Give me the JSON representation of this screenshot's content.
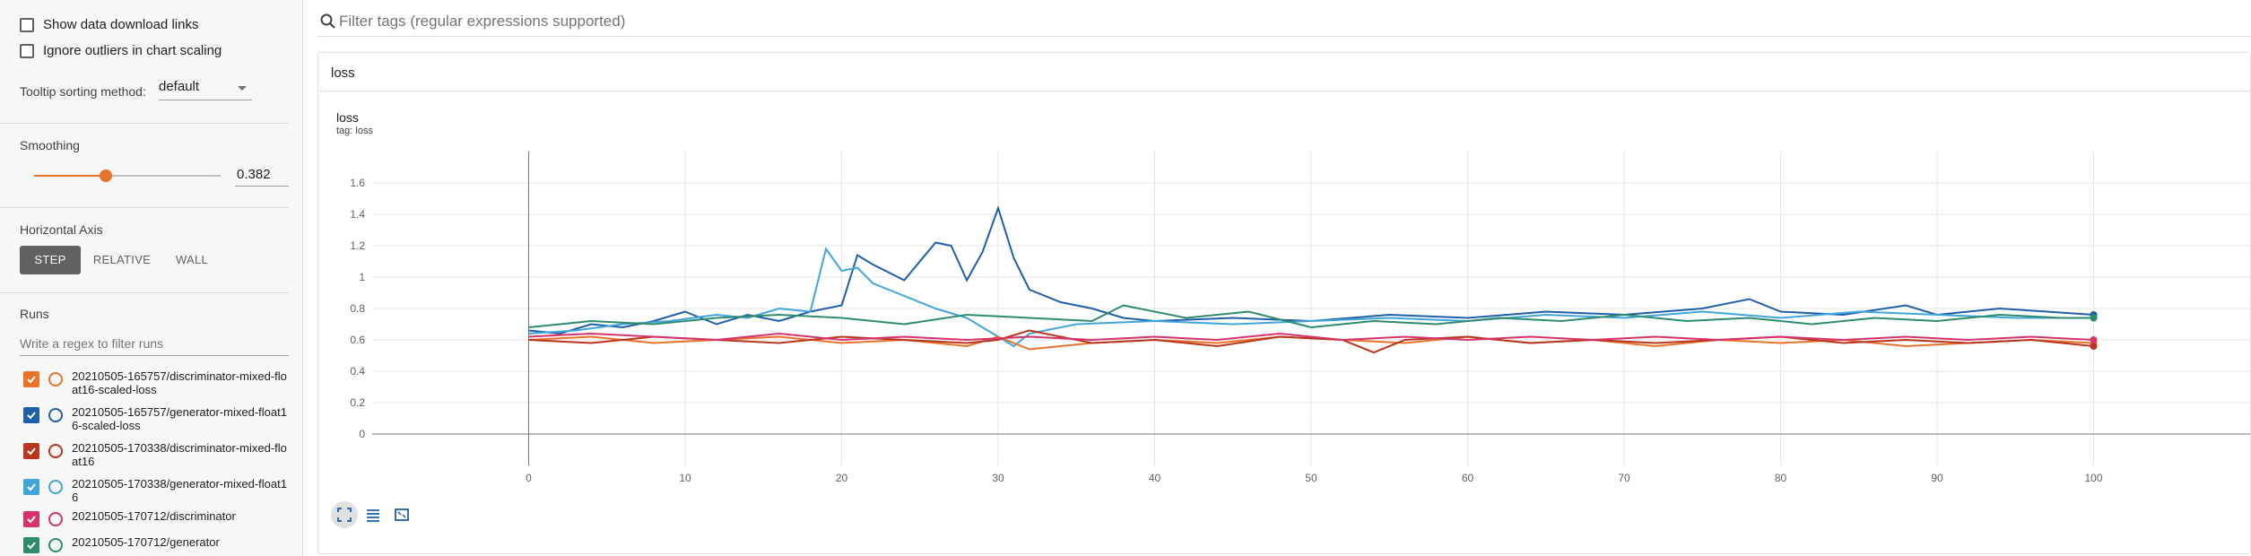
{
  "sidebar": {
    "show_download": {
      "label": "Show data download links",
      "checked": false
    },
    "ignore_outliers": {
      "label": "Ignore outliers in chart scaling",
      "checked": false
    },
    "tooltip_sorting": {
      "label": "Tooltip sorting method:",
      "value": "default"
    },
    "smoothing": {
      "label": "Smoothing",
      "value": "0.382",
      "fraction": 0.382
    },
    "horizontal_axis": {
      "label": "Horizontal Axis",
      "options": [
        "STEP",
        "RELATIVE",
        "WALL"
      ],
      "selected": "STEP"
    },
    "runs": {
      "label": "Runs",
      "filter_placeholder": "Write a regex to filter runs",
      "items": [
        {
          "line1": "20210505-165757/discriminator-mixed-flo",
          "line2": "at16-scaled-loss",
          "color": "#e8732b",
          "checked": true
        },
        {
          "line1": "20210505-165757/generator-mixed-float1",
          "line2": "6-scaled-loss",
          "color": "#1f5ea8",
          "checked": true
        },
        {
          "line1": "20210505-170338/discriminator-mixed-flo",
          "line2": "at16",
          "color": "#b8351e",
          "checked": true
        },
        {
          "line1": "20210505-170338/generator-mixed-float1",
          "line2": "6",
          "color": "#42a5d8",
          "checked": true
        },
        {
          "line1": "20210505-170712/discriminator",
          "line2": "",
          "color": "#d6336c",
          "checked": true
        },
        {
          "line1": "20210505-170712/generator",
          "line2": "",
          "color": "#2e8b6e",
          "checked": true
        }
      ]
    }
  },
  "filter": {
    "placeholder": "Filter tags (regular expressions supported)",
    "icon": "search-icon"
  },
  "card": {
    "title": "loss",
    "chart_title": "loss",
    "tag": "tag: loss"
  },
  "toolbar": {
    "icons": [
      "fit-domain-icon",
      "toggle-log-icon",
      "expand-icon"
    ]
  },
  "chart_data": {
    "type": "line",
    "title": "loss",
    "xlim": [
      -10,
      110
    ],
    "ylim": [
      -0.2,
      1.8
    ],
    "x_ticks": [
      0,
      10,
      20,
      30,
      40,
      50,
      60,
      70,
      80,
      90,
      100
    ],
    "y_ticks": [
      0,
      0.2,
      0.4,
      0.6,
      0.8,
      1,
      1.2,
      1.4,
      1.6
    ],
    "grid": true,
    "series": [
      {
        "color": "#1f5ea8",
        "points": [
          [
            0,
            0.66
          ],
          [
            2,
            0.64
          ],
          [
            4,
            0.7
          ],
          [
            6,
            0.68
          ],
          [
            8,
            0.72
          ],
          [
            10,
            0.78
          ],
          [
            12,
            0.7
          ],
          [
            14,
            0.76
          ],
          [
            16,
            0.72
          ],
          [
            18,
            0.78
          ],
          [
            19,
            0.8
          ],
          [
            20,
            0.82
          ],
          [
            21,
            1.14
          ],
          [
            22,
            1.08
          ],
          [
            24,
            0.98
          ],
          [
            26,
            1.22
          ],
          [
            27,
            1.2
          ],
          [
            28,
            0.98
          ],
          [
            29,
            1.16
          ],
          [
            30,
            1.44
          ],
          [
            31,
            1.12
          ],
          [
            32,
            0.92
          ],
          [
            34,
            0.84
          ],
          [
            36,
            0.8
          ],
          [
            38,
            0.74
          ],
          [
            40,
            0.72
          ],
          [
            45,
            0.74
          ],
          [
            50,
            0.72
          ],
          [
            55,
            0.76
          ],
          [
            60,
            0.74
          ],
          [
            65,
            0.78
          ],
          [
            70,
            0.76
          ],
          [
            75,
            0.8
          ],
          [
            78,
            0.86
          ],
          [
            80,
            0.78
          ],
          [
            84,
            0.76
          ],
          [
            88,
            0.82
          ],
          [
            90,
            0.76
          ],
          [
            94,
            0.8
          ],
          [
            97,
            0.78
          ],
          [
            100,
            0.76
          ]
        ]
      },
      {
        "color": "#42a5d8",
        "points": [
          [
            0,
            0.64
          ],
          [
            3,
            0.66
          ],
          [
            6,
            0.7
          ],
          [
            9,
            0.72
          ],
          [
            12,
            0.76
          ],
          [
            14,
            0.74
          ],
          [
            16,
            0.8
          ],
          [
            18,
            0.78
          ],
          [
            19,
            1.18
          ],
          [
            20,
            1.04
          ],
          [
            21,
            1.06
          ],
          [
            22,
            0.96
          ],
          [
            24,
            0.88
          ],
          [
            26,
            0.8
          ],
          [
            28,
            0.74
          ],
          [
            30,
            0.62
          ],
          [
            31,
            0.56
          ],
          [
            32,
            0.64
          ],
          [
            35,
            0.7
          ],
          [
            40,
            0.72
          ],
          [
            45,
            0.7
          ],
          [
            50,
            0.72
          ],
          [
            55,
            0.74
          ],
          [
            60,
            0.72
          ],
          [
            65,
            0.76
          ],
          [
            70,
            0.74
          ],
          [
            75,
            0.78
          ],
          [
            80,
            0.74
          ],
          [
            85,
            0.78
          ],
          [
            90,
            0.76
          ],
          [
            95,
            0.74
          ],
          [
            100,
            0.74
          ]
        ]
      },
      {
        "color": "#2e8b6e",
        "points": [
          [
            0,
            0.68
          ],
          [
            4,
            0.72
          ],
          [
            8,
            0.7
          ],
          [
            12,
            0.74
          ],
          [
            16,
            0.76
          ],
          [
            20,
            0.74
          ],
          [
            24,
            0.7
          ],
          [
            28,
            0.76
          ],
          [
            32,
            0.74
          ],
          [
            36,
            0.72
          ],
          [
            38,
            0.82
          ],
          [
            42,
            0.74
          ],
          [
            46,
            0.78
          ],
          [
            50,
            0.68
          ],
          [
            54,
            0.72
          ],
          [
            58,
            0.7
          ],
          [
            62,
            0.74
          ],
          [
            66,
            0.72
          ],
          [
            70,
            0.76
          ],
          [
            74,
            0.72
          ],
          [
            78,
            0.74
          ],
          [
            82,
            0.7
          ],
          [
            86,
            0.74
          ],
          [
            90,
            0.72
          ],
          [
            94,
            0.76
          ],
          [
            98,
            0.74
          ],
          [
            100,
            0.74
          ]
        ]
      },
      {
        "color": "#e8732b",
        "points": [
          [
            0,
            0.6
          ],
          [
            4,
            0.62
          ],
          [
            8,
            0.58
          ],
          [
            12,
            0.6
          ],
          [
            16,
            0.62
          ],
          [
            20,
            0.58
          ],
          [
            24,
            0.6
          ],
          [
            28,
            0.56
          ],
          [
            30,
            0.62
          ],
          [
            32,
            0.54
          ],
          [
            36,
            0.58
          ],
          [
            40,
            0.6
          ],
          [
            44,
            0.58
          ],
          [
            48,
            0.62
          ],
          [
            52,
            0.6
          ],
          [
            56,
            0.58
          ],
          [
            60,
            0.62
          ],
          [
            64,
            0.58
          ],
          [
            68,
            0.6
          ],
          [
            72,
            0.56
          ],
          [
            76,
            0.6
          ],
          [
            80,
            0.58
          ],
          [
            84,
            0.6
          ],
          [
            88,
            0.56
          ],
          [
            92,
            0.58
          ],
          [
            96,
            0.6
          ],
          [
            100,
            0.58
          ]
        ]
      },
      {
        "color": "#b8351e",
        "points": [
          [
            0,
            0.6
          ],
          [
            4,
            0.58
          ],
          [
            8,
            0.62
          ],
          [
            12,
            0.6
          ],
          [
            16,
            0.58
          ],
          [
            20,
            0.62
          ],
          [
            24,
            0.6
          ],
          [
            28,
            0.58
          ],
          [
            30,
            0.6
          ],
          [
            32,
            0.66
          ],
          [
            34,
            0.62
          ],
          [
            36,
            0.58
          ],
          [
            40,
            0.6
          ],
          [
            44,
            0.56
          ],
          [
            48,
            0.62
          ],
          [
            52,
            0.6
          ],
          [
            54,
            0.52
          ],
          [
            56,
            0.6
          ],
          [
            60,
            0.62
          ],
          [
            64,
            0.58
          ],
          [
            68,
            0.6
          ],
          [
            72,
            0.58
          ],
          [
            76,
            0.6
          ],
          [
            80,
            0.62
          ],
          [
            84,
            0.58
          ],
          [
            88,
            0.6
          ],
          [
            92,
            0.58
          ],
          [
            96,
            0.6
          ],
          [
            100,
            0.56
          ]
        ]
      },
      {
        "color": "#d6336c",
        "points": [
          [
            0,
            0.62
          ],
          [
            4,
            0.64
          ],
          [
            8,
            0.62
          ],
          [
            12,
            0.6
          ],
          [
            16,
            0.64
          ],
          [
            20,
            0.6
          ],
          [
            24,
            0.62
          ],
          [
            28,
            0.6
          ],
          [
            32,
            0.62
          ],
          [
            36,
            0.6
          ],
          [
            40,
            0.62
          ],
          [
            44,
            0.6
          ],
          [
            48,
            0.64
          ],
          [
            52,
            0.6
          ],
          [
            56,
            0.62
          ],
          [
            60,
            0.6
          ],
          [
            64,
            0.62
          ],
          [
            68,
            0.6
          ],
          [
            72,
            0.62
          ],
          [
            76,
            0.6
          ],
          [
            80,
            0.62
          ],
          [
            84,
            0.6
          ],
          [
            88,
            0.62
          ],
          [
            92,
            0.6
          ],
          [
            96,
            0.62
          ],
          [
            100,
            0.6
          ]
        ]
      }
    ]
  }
}
